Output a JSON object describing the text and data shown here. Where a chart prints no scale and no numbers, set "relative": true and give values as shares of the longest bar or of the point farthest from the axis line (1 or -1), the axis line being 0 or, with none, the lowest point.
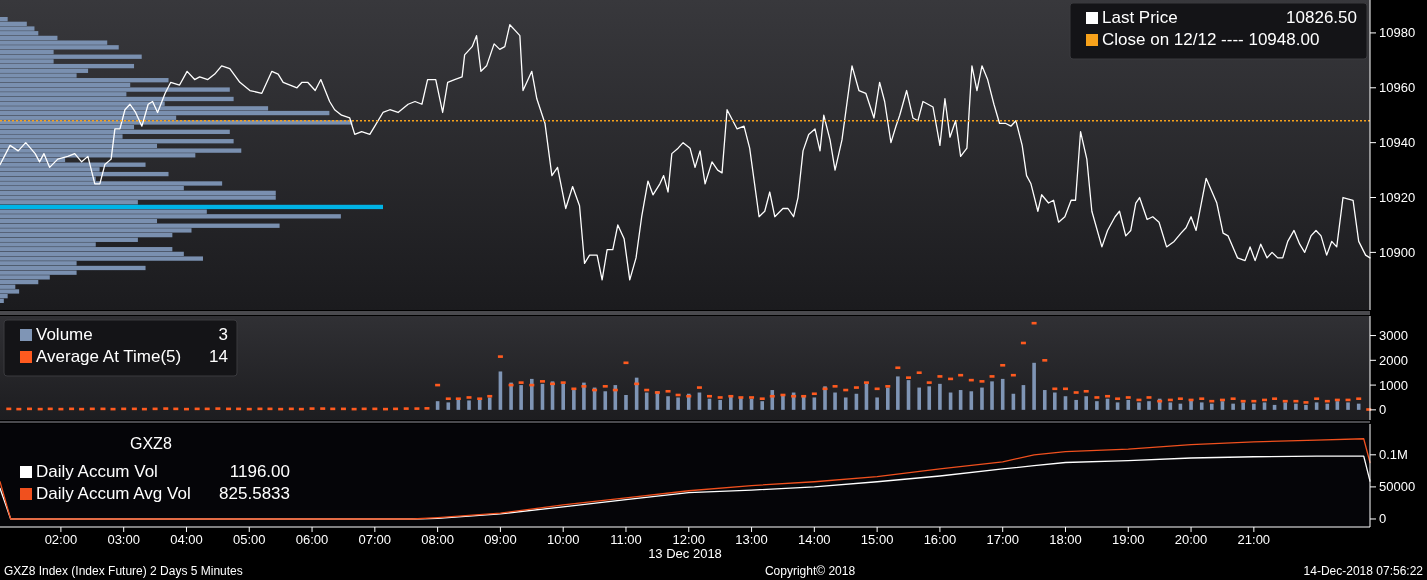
{
  "chart_data": [
    {
      "type": "line",
      "xlim": [
        1.03,
        22.85
      ],
      "ylim": [
        10879,
        10992
      ],
      "yticks": [
        10900,
        10920,
        10940,
        10960,
        10980
      ],
      "tick_labels": "y",
      "legend": "top right",
      "annotations": [
        "10826.50"
      ],
      "ref_lines": [
        {
          "axis": "y",
          "value": 10948,
          "label": "Close on 12/12 ---- 10948.00",
          "color": "#f7a21b",
          "line_style": "dotted"
        }
      ],
      "series": [
        {
          "name": "Last Price",
          "color": "#ffffff",
          "x": [
            1.03,
            1.19,
            1.32,
            1.44,
            1.59,
            1.66,
            1.73,
            1.82,
            1.95,
            2.11,
            2.22,
            2.33,
            2.43,
            2.54,
            2.62,
            2.7,
            2.8,
            2.86,
            2.94,
            3.02,
            3.1,
            3.19,
            3.29,
            3.39,
            3.46,
            3.54,
            3.66,
            3.75,
            3.89,
            4.01,
            4.13,
            4.21,
            4.34,
            4.45,
            4.56,
            4.69,
            4.85,
            5.01,
            5.2,
            5.36,
            5.46,
            5.54,
            5.65,
            5.76,
            5.84,
            5.93,
            6.05,
            6.14,
            6.28,
            6.36,
            6.47,
            6.6,
            6.68,
            6.79,
            6.92,
            7.0,
            7.13,
            7.24,
            7.37,
            7.53,
            7.64,
            7.75,
            7.84,
            7.97,
            8.08,
            8.16,
            8.27,
            8.39,
            8.43,
            8.55,
            8.62,
            8.69,
            8.78,
            8.9,
            8.99,
            9.07,
            9.15,
            9.23,
            9.31,
            9.36,
            9.5,
            9.58,
            9.71,
            9.82,
            9.91,
            10.04,
            10.15,
            10.26,
            10.34,
            10.42,
            10.54,
            10.62,
            10.7,
            10.79,
            10.87,
            10.97,
            11.06,
            11.16,
            11.25,
            11.35,
            11.43,
            11.54,
            11.6,
            11.67,
            11.73,
            11.83,
            11.91,
            12.02,
            12.1,
            12.18,
            12.26,
            12.37,
            12.46,
            12.53,
            12.61,
            12.77,
            12.88,
            12.97,
            13.12,
            13.21,
            13.29,
            13.37,
            13.5,
            13.58,
            13.67,
            13.74,
            13.82,
            13.91,
            14.01,
            14.09,
            14.15,
            14.25,
            14.33,
            14.44,
            14.6,
            14.71,
            14.82,
            14.95,
            15.04,
            15.12,
            15.22,
            15.3,
            15.36,
            15.47,
            15.57,
            15.65,
            15.73,
            15.89,
            16.0,
            16.08,
            16.16,
            16.25,
            16.33,
            16.43,
            16.51,
            16.59,
            16.67,
            16.76,
            16.86,
            16.95,
            17.05,
            17.13,
            17.21,
            17.31,
            17.38,
            17.45,
            17.56,
            17.62,
            17.73,
            17.81,
            17.89,
            17.99,
            18.09,
            18.16,
            18.24,
            18.34,
            18.42,
            18.58,
            18.67,
            18.79,
            18.86,
            18.96,
            19.04,
            19.12,
            19.18,
            19.3,
            19.39,
            19.49,
            19.61,
            19.73,
            19.84,
            19.92,
            20.0,
            20.08,
            20.24,
            20.41,
            20.51,
            20.59,
            20.74,
            20.86,
            20.94,
            21.02,
            21.11,
            21.21,
            21.29,
            21.38,
            21.46,
            21.54,
            21.64,
            21.73,
            21.81,
            21.91,
            21.99,
            22.07,
            22.16,
            22.24,
            22.32,
            22.42,
            22.58,
            22.67,
            22.78,
            22.85
          ],
          "values": [
            10932,
            10939,
            10937,
            10940,
            10936,
            10933,
            10936,
            10931,
            10934,
            10935,
            10936,
            10933,
            10935,
            10925,
            10925,
            10932,
            10934,
            10945,
            10945,
            10952,
            10954,
            10951,
            10946,
            10954,
            10955,
            10951,
            10958,
            10962,
            10961,
            10966,
            10963,
            10964,
            10963,
            10965,
            10968,
            10967,
            10962,
            10959,
            10958,
            10966,
            10965,
            10962,
            10961,
            10960,
            10962,
            10962,
            10959,
            10963,
            10955,
            10952,
            10950,
            10949,
            10943,
            10944,
            10943,
            10946,
            10951,
            10952,
            10951,
            10954,
            10955,
            10954,
            10963,
            10963,
            10951,
            10962,
            10963,
            10964,
            10972,
            10975,
            10979,
            10966,
            10968,
            10976,
            10974,
            10975,
            10983,
            10981,
            10979,
            10959,
            10966,
            10956,
            10947,
            10928,
            10931,
            10916,
            10924,
            10917,
            10896,
            10899,
            10899,
            10890,
            10901,
            10901,
            10910,
            10905,
            10890,
            10898,
            10913,
            10926,
            10921,
            10925,
            10928,
            10922,
            10936,
            10938,
            10940,
            10938,
            10931,
            10937,
            10925,
            10933,
            10930,
            10929,
            10952,
            10945,
            10946,
            10938,
            10913,
            10915,
            10922,
            10913,
            10916,
            10916,
            10913,
            10920,
            10937,
            10943,
            10945,
            10937,
            10950,
            10941,
            10930,
            10941,
            10968,
            10959,
            10958,
            10949,
            10962,
            10955,
            10940,
            10946,
            10950,
            10959,
            10949,
            10948,
            10955,
            10953,
            10939,
            10956,
            10942,
            10948,
            10935,
            10938,
            10968,
            10959,
            10968,
            10963,
            10954,
            10947,
            10947,
            10946,
            10948,
            10939,
            10928,
            10925,
            10915,
            10921,
            10918,
            10919,
            10911,
            10913,
            10919,
            10919,
            10944,
            10934,
            10915,
            10902,
            10908,
            10913,
            10915,
            10906,
            10908,
            10918,
            10920,
            10912,
            10913,
            10911,
            10902,
            10904,
            10907,
            10909,
            10913,
            10908,
            10927,
            10918,
            10907,
            10906,
            10898,
            10897,
            10902,
            10897,
            10903,
            10898,
            10900,
            10898,
            10898,
            10904,
            10908,
            10903,
            10900,
            10906,
            10908,
            10906,
            10899,
            10904,
            10902,
            10920,
            10919,
            10904,
            10899,
            10898
          ]
        }
      ]
    },
    {
      "type": "bar",
      "orientation": "horizontal",
      "relative": true,
      "categories": [
        null,
        null,
        null,
        null,
        null,
        null,
        null,
        null,
        null,
        null,
        null,
        null,
        null,
        null,
        null,
        null,
        null,
        null,
        null,
        null,
        null,
        null,
        null,
        null,
        null,
        null,
        null,
        null,
        null,
        null,
        null,
        null,
        null,
        null,
        null,
        null,
        null,
        null,
        null,
        null,
        null,
        null,
        null,
        null,
        null,
        null,
        null,
        null,
        null,
        null,
        null,
        null,
        null,
        null,
        null,
        null,
        null,
        null,
        null,
        null,
        null
      ],
      "values": [
        0.02,
        0.07,
        0.09,
        0.1,
        0.15,
        0.28,
        0.31,
        0.14,
        0.37,
        0.14,
        0.35,
        0.23,
        0.2,
        0.44,
        0.34,
        0.6,
        0.33,
        0.61,
        0.43,
        0.7,
        0.86,
        0.46,
        0.92,
        0.35,
        0.6,
        0.32,
        0.61,
        0.41,
        0.63,
        0.51,
        0.17,
        0.38,
        0.26,
        0.44,
        0.25,
        0.58,
        0.48,
        0.72,
        0.72,
        0.36,
        1,
        0.54,
        0.89,
        0.41,
        0.73,
        0.5,
        0.45,
        0.36,
        0.25,
        0.45,
        0.48,
        0.53,
        0.2,
        0.38,
        0.2,
        0.13,
        0.1,
        0.04,
        0.05,
        0.02,
        0.01
      ],
      "colors": [
        "#7a90b0",
        "#7a90b0",
        "#7a90b0",
        "#7a90b0",
        "#7a90b0",
        "#7a90b0",
        "#7a90b0",
        "#7a90b0",
        "#7a90b0",
        "#7a90b0",
        "#7a90b0",
        "#7a90b0",
        "#7a90b0",
        "#7a90b0",
        "#7a90b0",
        "#7a90b0",
        "#7a90b0",
        "#7a90b0",
        "#7a90b0",
        "#7a90b0",
        "#7a90b0",
        "#7a90b0",
        "#7a90b0",
        "#7a90b0",
        "#7a90b0",
        "#7a90b0",
        "#7a90b0",
        "#7a90b0",
        "#7a90b0",
        "#7a90b0",
        "#7a90b0",
        "#7a90b0",
        "#7a90b0",
        "#7a90b0",
        "#7a90b0",
        "#7a90b0",
        "#7a90b0",
        "#7a90b0",
        "#7a90b0",
        "#7a90b0",
        "#00b4e6",
        "#7a90b0",
        "#7a90b0",
        "#7a90b0",
        "#7a90b0",
        "#7a90b0",
        "#7a90b0",
        "#7a90b0",
        "#7a90b0",
        "#7a90b0",
        "#7a90b0",
        "#7a90b0",
        "#7a90b0",
        "#7a90b0",
        "#7a90b0",
        "#7a90b0",
        "#7a90b0",
        "#7a90b0",
        "#7a90b0",
        "#7a90b0",
        "#7a90b0"
      ]
    },
    {
      "type": "bar",
      "xlim": [
        1.03,
        22.85
      ],
      "ylim": [
        -410,
        3790
      ],
      "yticks": [
        0,
        1000,
        2000,
        3000
      ],
      "tick_labels": "y",
      "legend": "top left",
      "marker": "square",
      "annotations": [
        "3",
        "14"
      ],
      "x": [
        1.17,
        1.33,
        1.5,
        1.67,
        1.83,
        2,
        2.17,
        2.33,
        2.5,
        2.67,
        2.83,
        3,
        3.17,
        3.33,
        3.5,
        3.67,
        3.83,
        4,
        4.17,
        4.33,
        4.5,
        4.67,
        4.83,
        5,
        5.17,
        5.33,
        5.5,
        5.67,
        5.83,
        6,
        6.17,
        6.33,
        6.5,
        6.67,
        6.83,
        7,
        7.17,
        7.33,
        7.5,
        7.67,
        7.83,
        8,
        8.17,
        8.33,
        8.5,
        8.67,
        8.83,
        9,
        9.17,
        9.33,
        9.5,
        9.67,
        9.83,
        10,
        10.17,
        10.33,
        10.5,
        10.67,
        10.83,
        11,
        11.17,
        11.33,
        11.5,
        11.67,
        11.83,
        12,
        12.17,
        12.33,
        12.5,
        12.67,
        12.83,
        13,
        13.17,
        13.33,
        13.5,
        13.67,
        13.83,
        14,
        14.17,
        14.33,
        14.5,
        14.67,
        14.83,
        15,
        15.17,
        15.33,
        15.5,
        15.67,
        15.83,
        16,
        16.17,
        16.33,
        16.5,
        16.67,
        16.83,
        17,
        17.17,
        17.33,
        17.5,
        17.67,
        17.83,
        18,
        18.17,
        18.33,
        18.5,
        18.67,
        18.83,
        19,
        19.17,
        19.33,
        19.5,
        19.67,
        19.83,
        20,
        20.17,
        20.33,
        20.5,
        20.67,
        20.83,
        21,
        21.17,
        21.33,
        21.5,
        21.67,
        21.83,
        22,
        22.17,
        22.33,
        22.5,
        22.67,
        22.83
      ],
      "series": [
        {
          "name": "Volume",
          "color": "#7f95b5",
          "values": [
            null,
            null,
            null,
            null,
            null,
            null,
            null,
            null,
            null,
            null,
            null,
            null,
            null,
            null,
            null,
            null,
            null,
            null,
            null,
            null,
            null,
            null,
            null,
            null,
            null,
            null,
            null,
            null,
            null,
            null,
            null,
            null,
            null,
            null,
            null,
            null,
            null,
            null,
            null,
            null,
            null,
            350,
            300,
            420,
            380,
            450,
            500,
            1550,
            1100,
            1000,
            1250,
            1050,
            1150,
            1050,
            800,
            1100,
            900,
            750,
            1000,
            600,
            1300,
            700,
            750,
            550,
            500,
            650,
            700,
            450,
            400,
            600,
            500,
            450,
            350,
            800,
            600,
            700,
            550,
            500,
            950,
            700,
            500,
            650,
            1050,
            500,
            900,
            1350,
            1200,
            900,
            950,
            1050,
            700,
            800,
            750,
            900,
            1150,
            1250,
            650,
            1000,
            1900,
            800,
            700,
            550,
            400,
            550,
            350,
            450,
            300,
            400,
            300,
            350,
            450,
            300,
            250,
            400,
            300,
            250,
            350,
            250,
            300,
            250,
            300,
            200,
            300,
            250,
            200,
            300,
            250,
            350,
            300,
            250,
            3
          ]
        },
        {
          "name": "Average At Time(5)",
          "type": "scatter",
          "color": "#ff5a1f",
          "values": [
            40,
            30,
            40,
            30,
            40,
            30,
            40,
            30,
            40,
            40,
            30,
            40,
            40,
            30,
            40,
            50,
            40,
            30,
            40,
            40,
            50,
            40,
            40,
            30,
            40,
            40,
            30,
            40,
            30,
            50,
            50,
            40,
            40,
            30,
            40,
            40,
            30,
            40,
            50,
            50,
            60,
            1000,
            450,
            450,
            500,
            450,
            550,
            2150,
            1000,
            1100,
            1000,
            1150,
            1050,
            1100,
            850,
            950,
            800,
            950,
            800,
            1900,
            1050,
            800,
            700,
            750,
            600,
            550,
            900,
            550,
            500,
            550,
            500,
            500,
            450,
            550,
            600,
            550,
            550,
            650,
            850,
            950,
            800,
            900,
            1100,
            850,
            950,
            1700,
            1300,
            1500,
            1100,
            1350,
            1250,
            1400,
            1200,
            1150,
            1350,
            1800,
            1400,
            2700,
            3500,
            2000,
            850,
            850,
            700,
            750,
            500,
            550,
            450,
            500,
            400,
            500,
            350,
            400,
            450,
            400,
            450,
            350,
            400,
            450,
            350,
            350,
            400,
            450,
            350,
            350,
            300,
            450,
            350,
            400,
            400,
            450,
            14
          ]
        }
      ]
    },
    {
      "type": "line",
      "xlim": [
        1.03,
        22.85
      ],
      "ylim": [
        -12500,
        148000
      ],
      "yticks": [
        0,
        50000,
        {
          "value": 100000,
          "label": "0.1M"
        }
      ],
      "xticks": [
        {
          "value": 2,
          "label": "02:00"
        },
        {
          "value": 3,
          "label": "03:00"
        },
        {
          "value": 4,
          "label": "04:00"
        },
        {
          "value": 5,
          "label": "05:00"
        },
        {
          "value": 6,
          "label": "06:00"
        },
        {
          "value": 7,
          "label": "07:00"
        },
        {
          "value": 8,
          "label": "08:00"
        },
        {
          "value": 9,
          "label": "09:00"
        },
        {
          "value": 10,
          "label": "10:00"
        },
        {
          "value": 11,
          "label": "11:00"
        },
        {
          "value": 12,
          "label": "12:00"
        },
        {
          "value": 13,
          "label": "13:00"
        },
        {
          "value": 14,
          "label": "14:00"
        },
        {
          "value": 15,
          "label": "15:00"
        },
        {
          "value": 16,
          "label": "16:00"
        },
        {
          "value": 17,
          "label": "17:00"
        },
        {
          "value": 18,
          "label": "18:00"
        },
        {
          "value": 19,
          "label": "19:00"
        },
        {
          "value": 20,
          "label": "20:00"
        },
        {
          "value": 21,
          "label": "21:00"
        }
      ],
      "xlabel": "13 Dec 2018",
      "legend": "left",
      "legend_title": "GXZ8",
      "annotations": [
        "1196.00",
        "825.5833",
        "GXZ8 Index (Index Future) 2 Days 5 Minutes",
        "Copyright© 2018",
        "14-Dec-2018 07:56:22"
      ],
      "x": [
        1.03,
        1.2,
        7.6,
        8,
        9,
        10,
        11,
        12,
        13,
        14,
        15,
        16,
        17,
        17.5,
        18,
        19,
        20,
        21,
        22,
        22.75,
        22.85
      ],
      "series": [
        {
          "name": "Daily Accum Vol",
          "color": "#ffffff",
          "values": [
            48000,
            0,
            0,
            1000,
            8000,
            19000,
            30000,
            41000,
            45000,
            50000,
            58000,
            67000,
            78000,
            83000,
            88000,
            91000,
            95000,
            97000,
            98000,
            98000,
            59000
          ]
        },
        {
          "name": "Daily Accum Avg Vol",
          "color": "#f0501e",
          "values": [
            58000,
            0,
            0,
            2000,
            9000,
            22000,
            33000,
            44000,
            52000,
            58000,
            66000,
            78000,
            89000,
            100000,
            105000,
            109000,
            116000,
            120000,
            123000,
            125000,
            88000
          ]
        }
      ]
    }
  ]
}
